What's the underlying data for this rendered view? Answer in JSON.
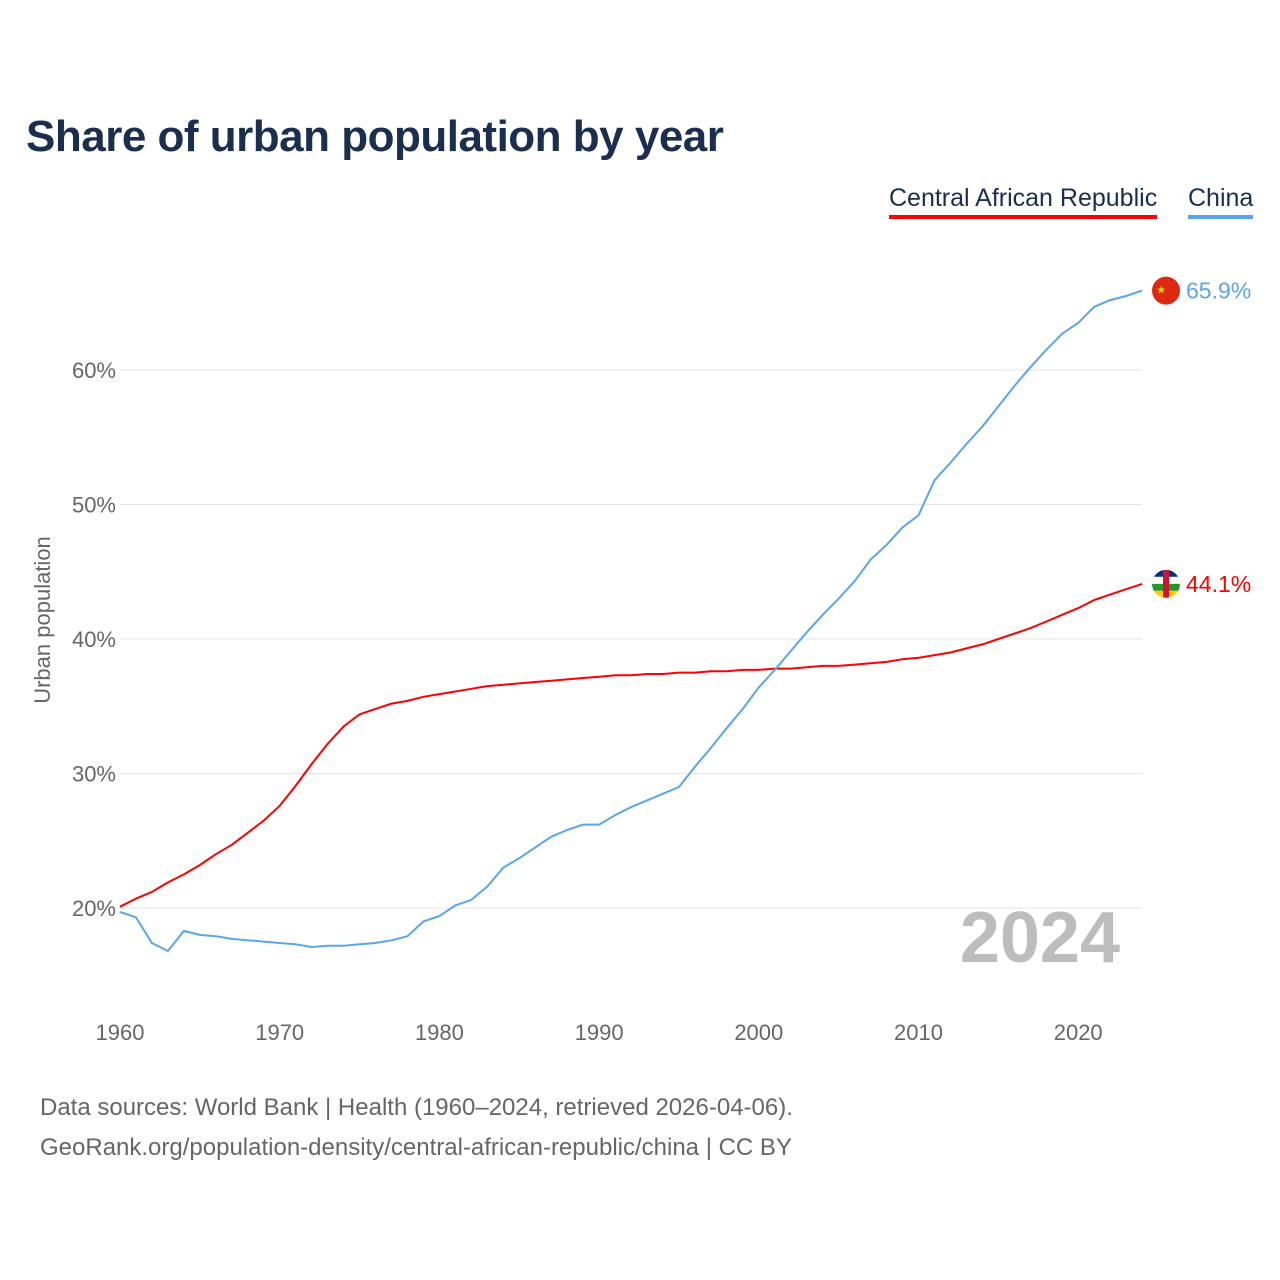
{
  "chart_data": {
    "type": "line",
    "title": "Share of urban population by year",
    "ylabel": "Urban population",
    "xlabel": "",
    "ylim": [
      12.5,
      70
    ],
    "xlim": [
      1960,
      2024
    ],
    "yticks": [
      "20%",
      "30%",
      "40%",
      "50%",
      "60%"
    ],
    "ytick_values": [
      20,
      30,
      40,
      50,
      60
    ],
    "xticks": [
      "1960",
      "1970",
      "1980",
      "1990",
      "2000",
      "2010",
      "2020"
    ],
    "xtick_values": [
      1960,
      1970,
      1980,
      1990,
      2000,
      2010,
      2020
    ],
    "grid": true,
    "legend_position": "top-right",
    "year_label": "2024",
    "x": [
      1960,
      1961,
      1962,
      1963,
      1964,
      1965,
      1966,
      1967,
      1968,
      1969,
      1970,
      1971,
      1972,
      1973,
      1974,
      1975,
      1976,
      1977,
      1978,
      1979,
      1980,
      1981,
      1982,
      1983,
      1984,
      1985,
      1986,
      1987,
      1988,
      1989,
      1990,
      1991,
      1992,
      1993,
      1994,
      1995,
      1996,
      1997,
      1998,
      1999,
      2000,
      2001,
      2002,
      2003,
      2004,
      2005,
      2006,
      2007,
      2008,
      2009,
      2010,
      2011,
      2012,
      2013,
      2014,
      2015,
      2016,
      2017,
      2018,
      2019,
      2020,
      2021,
      2022,
      2023,
      2024
    ],
    "series": [
      {
        "name": "Central African Republic",
        "color": "#ff0000",
        "end_label": "44.1%",
        "values": [
          20.1,
          20.7,
          21.2,
          21.9,
          22.5,
          23.2,
          24.0,
          24.7,
          25.6,
          26.5,
          27.6,
          29.1,
          30.7,
          32.2,
          33.5,
          34.4,
          34.8,
          35.2,
          35.4,
          35.7,
          35.9,
          36.1,
          36.3,
          36.5,
          36.6,
          36.7,
          36.8,
          36.9,
          37.0,
          37.1,
          37.2,
          37.3,
          37.3,
          37.4,
          37.4,
          37.5,
          37.5,
          37.6,
          37.6,
          37.7,
          37.7,
          37.8,
          37.8,
          37.9,
          38.0,
          38.0,
          38.1,
          38.2,
          38.3,
          38.5,
          38.6,
          38.8,
          39.0,
          39.3,
          39.6,
          40.0,
          40.4,
          40.8,
          41.3,
          41.8,
          42.3,
          42.9,
          43.3,
          43.7,
          44.1
        ]
      },
      {
        "name": "China",
        "color": "#5aa5ef",
        "end_label": "65.9%",
        "values": [
          19.7,
          19.3,
          17.4,
          16.8,
          18.3,
          18.0,
          17.9,
          17.7,
          17.6,
          17.5,
          17.4,
          17.3,
          17.1,
          17.2,
          17.2,
          17.3,
          17.4,
          17.6,
          17.9,
          19.0,
          19.4,
          20.2,
          20.6,
          21.6,
          23.0,
          23.7,
          24.5,
          25.3,
          25.8,
          26.2,
          26.2,
          26.9,
          27.5,
          28.0,
          28.5,
          29.0,
          30.5,
          31.9,
          33.4,
          34.8,
          36.4,
          37.7,
          39.1,
          40.5,
          41.8,
          43.0,
          44.3,
          45.9,
          47.0,
          48.3,
          49.2,
          51.8,
          53.1,
          54.5,
          55.8,
          57.3,
          58.8,
          60.2,
          61.5,
          62.7,
          63.5,
          64.7,
          65.2,
          65.5,
          65.9
        ]
      }
    ]
  },
  "footer": {
    "line1": "Data sources: World Bank | Health (1960–2024, retrieved 2026-04-06).",
    "line2": "GeoRank.org/population-density/central-african-republic/china | CC BY"
  }
}
